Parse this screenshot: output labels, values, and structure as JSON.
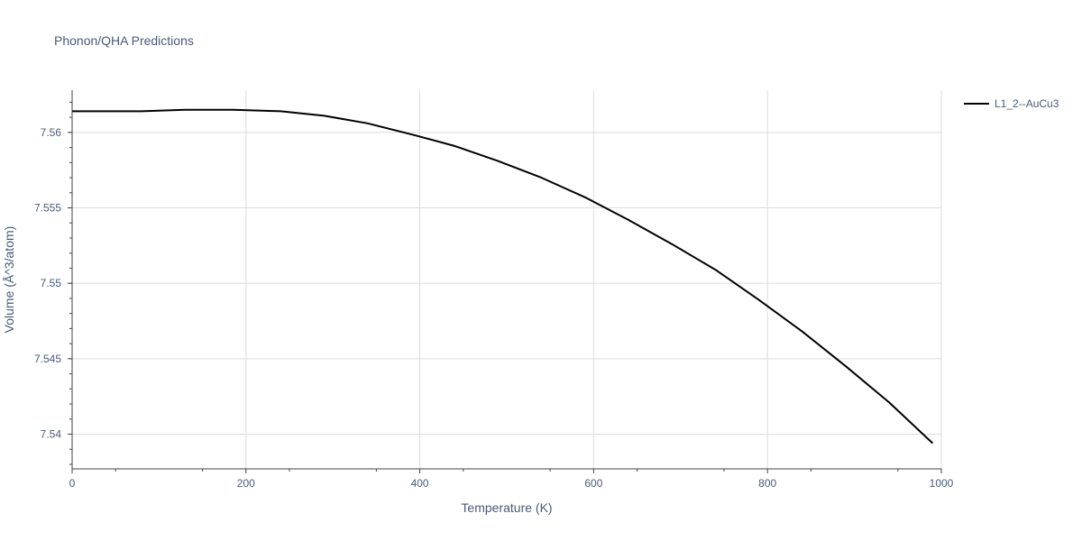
{
  "chart_data": {
    "type": "line",
    "title": "Phonon/QHA Predictions",
    "xlabel": "Temperature (K)",
    "ylabel": "Volume (Å^3/atom)",
    "xlim": [
      0,
      1000
    ],
    "ylim": [
      7.5377,
      7.5628
    ],
    "x_ticks": [
      0,
      200,
      400,
      600,
      800,
      1000
    ],
    "x_tick_labels": [
      "0",
      "200",
      "400",
      "600",
      "800",
      "1000"
    ],
    "y_ticks": [
      7.54,
      7.545,
      7.55,
      7.555,
      7.56
    ],
    "y_tick_labels": [
      "7.54",
      "7.545",
      "7.55",
      "7.555",
      "7.56"
    ],
    "grid": true,
    "legend_position": "top-right",
    "series": [
      {
        "name": "L1_2--AuCu3",
        "color": "#000000",
        "x": [
          0,
          80,
          130,
          185,
          240,
          290,
          340,
          395,
          440,
          490,
          540,
          590,
          640,
          690,
          740,
          790,
          840,
          890,
          940,
          990
        ],
        "y": [
          7.5614,
          7.5614,
          7.5615,
          7.5615,
          7.5614,
          7.5611,
          7.5606,
          7.5598,
          7.5591,
          7.5581,
          7.557,
          7.5557,
          7.5542,
          7.5526,
          7.5509,
          7.5489,
          7.5468,
          7.5445,
          7.5421,
          7.5394
        ]
      }
    ]
  }
}
